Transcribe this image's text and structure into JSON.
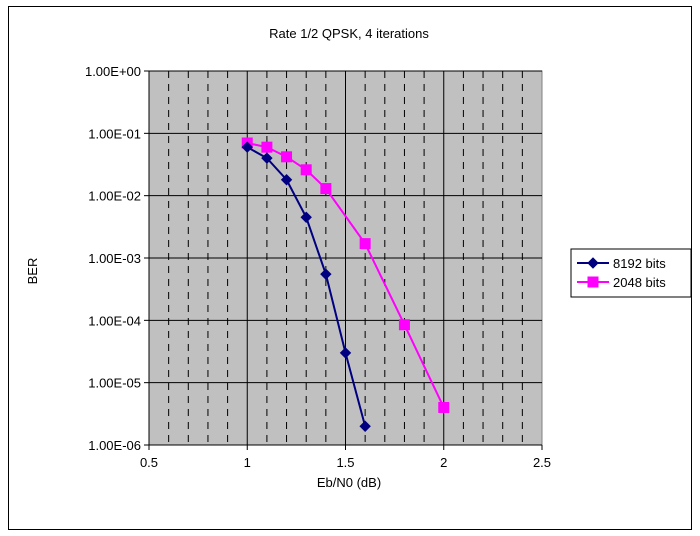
{
  "chart_data": {
    "type": "line",
    "title": "Rate 1/2 QPSK, 4 iterations",
    "xlabel": "Eb/N0 (dB)",
    "ylabel": "BER",
    "xlim": [
      0.5,
      2.5
    ],
    "ylim": [
      1e-06,
      1
    ],
    "y_scale": "log",
    "x_ticks": [
      0.5,
      1,
      1.5,
      2,
      2.5
    ],
    "x_tick_labels": [
      "0.5",
      "1",
      "1.5",
      "2",
      "2.5"
    ],
    "y_ticks": [
      1e-06,
      1e-05,
      0.0001,
      0.001,
      0.01,
      0.1,
      1
    ],
    "y_tick_labels": [
      "1.00E-06",
      "1.00E-05",
      "1.00E-04",
      "1.00E-03",
      "1.00E-02",
      "1.00E-01",
      "1.00E+00"
    ],
    "grid": true,
    "plot_background": "#c0c0c0",
    "legend_position": "right",
    "series": [
      {
        "name": "8192 bits",
        "color": "#000080",
        "marker": "diamond",
        "x": [
          1.0,
          1.1,
          1.2,
          1.3,
          1.4,
          1.5,
          1.6
        ],
        "y": [
          0.06,
          0.04,
          0.018,
          0.0045,
          0.00055,
          3e-05,
          2e-06
        ]
      },
      {
        "name": "2048 bits",
        "color": "#ff00ff",
        "marker": "square",
        "x": [
          1.0,
          1.1,
          1.2,
          1.3,
          1.4,
          1.6,
          1.8,
          2.0
        ],
        "y": [
          0.07,
          0.06,
          0.042,
          0.026,
          0.013,
          0.0017,
          8.5e-05,
          4e-06
        ]
      }
    ]
  }
}
